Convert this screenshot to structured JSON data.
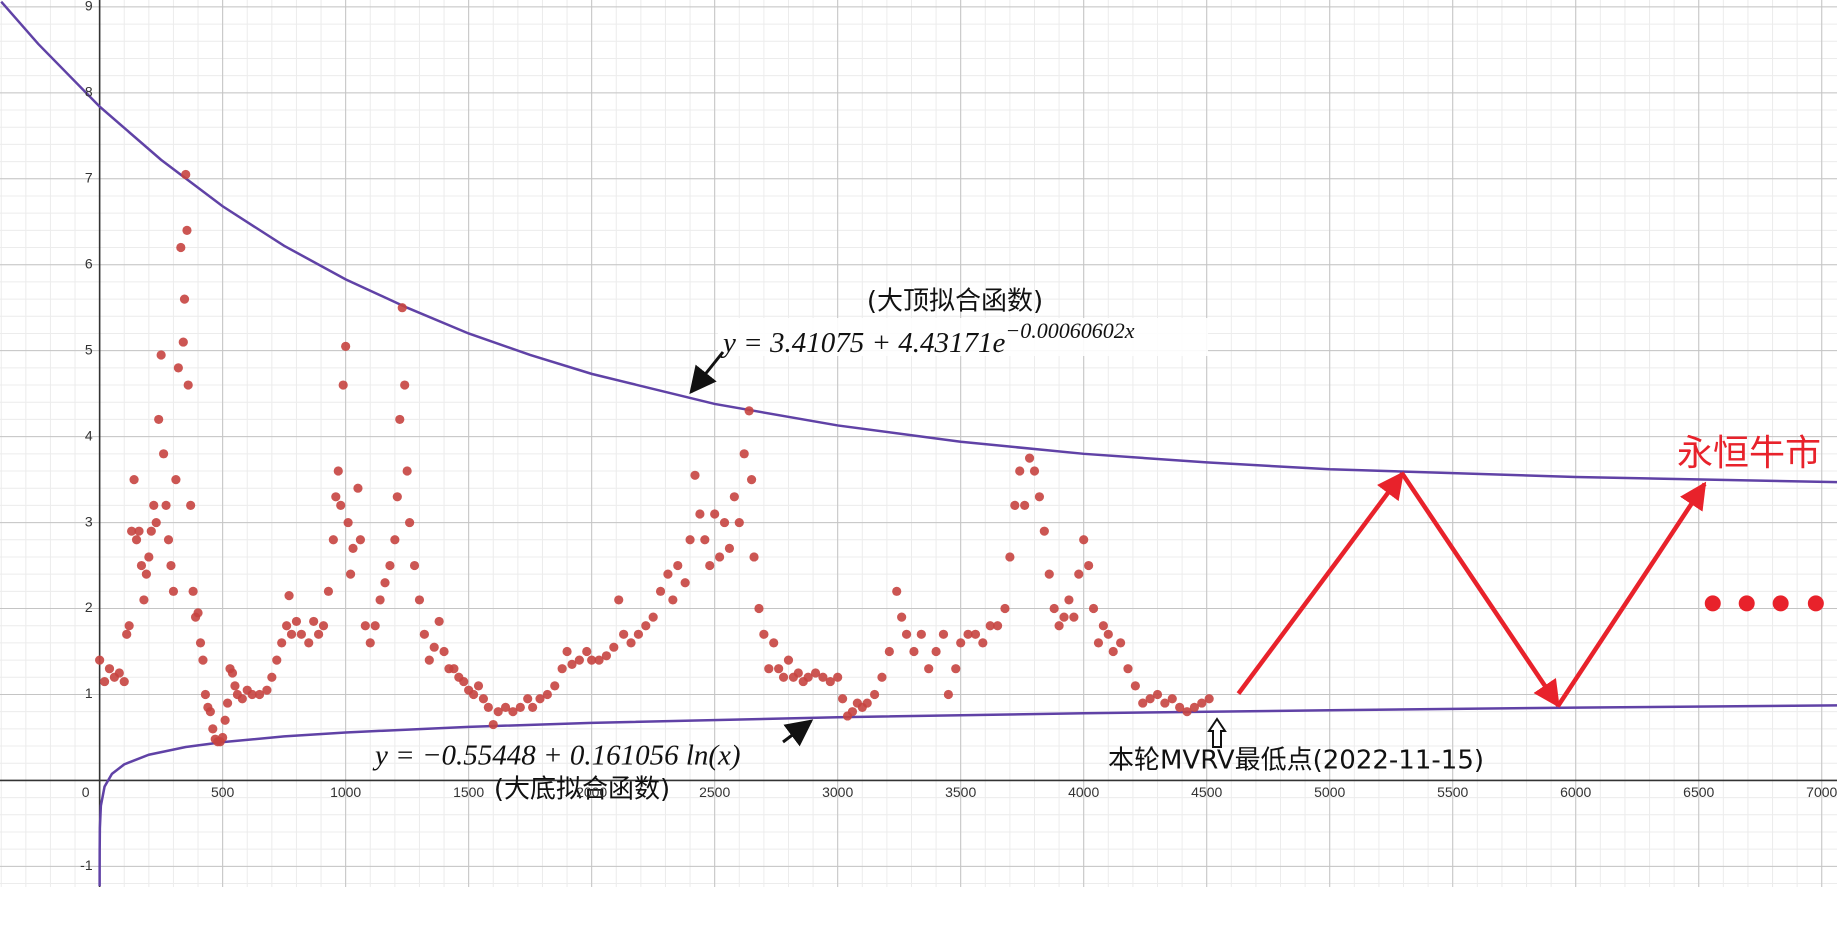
{
  "chart_data": {
    "type": "scatter",
    "xlim": [
      -405,
      7062
    ],
    "ylim": [
      -1.24,
      9.08
    ],
    "xticks": [
      0,
      500,
      1000,
      1500,
      2000,
      2500,
      3000,
      3500,
      4000,
      4500,
      5000,
      5500,
      6000,
      6500,
      7000
    ],
    "yticks": [
      -1,
      1,
      2,
      3,
      4,
      5,
      6,
      7,
      8,
      9
    ],
    "grid": true,
    "minor_grid": 5,
    "points": {
      "color": "#c74440",
      "x": [
        0,
        20,
        40,
        60,
        80,
        100,
        110,
        120,
        130,
        140,
        150,
        160,
        170,
        180,
        190,
        200,
        210,
        220,
        230,
        240,
        250,
        260,
        270,
        280,
        290,
        300,
        310,
        320,
        330,
        340,
        345,
        350,
        355,
        360,
        370,
        380,
        390,
        400,
        410,
        420,
        430,
        440,
        450,
        460,
        470,
        480,
        490,
        500,
        510,
        520,
        530,
        540,
        550,
        560,
        580,
        600,
        620,
        650,
        680,
        700,
        720,
        740,
        760,
        770,
        780,
        800,
        820,
        850,
        870,
        890,
        910,
        930,
        950,
        960,
        970,
        980,
        990,
        1000,
        1010,
        1020,
        1030,
        1050,
        1060,
        1080,
        1100,
        1120,
        1140,
        1160,
        1180,
        1200,
        1210,
        1220,
        1230,
        1240,
        1250,
        1260,
        1280,
        1300,
        1320,
        1340,
        1360,
        1380,
        1400,
        1420,
        1440,
        1460,
        1480,
        1500,
        1520,
        1540,
        1560,
        1580,
        1600,
        1620,
        1650,
        1680,
        1710,
        1740,
        1760,
        1790,
        1820,
        1850,
        1880,
        1900,
        1920,
        1950,
        1980,
        2000,
        2030,
        2060,
        2090,
        2110,
        2130,
        2160,
        2190,
        2220,
        2250,
        2280,
        2310,
        2330,
        2350,
        2380,
        2400,
        2420,
        2440,
        2460,
        2480,
        2500,
        2520,
        2540,
        2560,
        2580,
        2600,
        2620,
        2640,
        2650,
        2660,
        2680,
        2700,
        2720,
        2740,
        2760,
        2780,
        2800,
        2820,
        2840,
        2860,
        2880,
        2910,
        2940,
        2970,
        3000,
        3020,
        3040,
        3060,
        3080,
        3100,
        3120,
        3150,
        3180,
        3210,
        3240,
        3260,
        3280,
        3310,
        3340,
        3370,
        3400,
        3430,
        3450,
        3480,
        3500,
        3530,
        3560,
        3590,
        3620,
        3650,
        3680,
        3700,
        3720,
        3740,
        3760,
        3780,
        3800,
        3820,
        3840,
        3860,
        3880,
        3900,
        3920,
        3940,
        3960,
        3980,
        4000,
        4020,
        4040,
        4060,
        4080,
        4100,
        4120,
        4150,
        4180,
        4210,
        4240,
        4270,
        4300,
        4330,
        4360,
        4390,
        4420,
        4450,
        4480,
        4510
      ],
      "values": [
        1.4,
        1.15,
        1.3,
        1.2,
        1.25,
        1.15,
        1.7,
        1.8,
        2.9,
        3.5,
        2.8,
        2.9,
        2.5,
        2.1,
        2.4,
        2.6,
        2.9,
        3.2,
        3.0,
        4.2,
        4.95,
        3.8,
        3.2,
        2.8,
        2.5,
        2.2,
        3.5,
        4.8,
        6.2,
        5.1,
        5.6,
        7.05,
        6.4,
        4.6,
        3.2,
        2.2,
        1.9,
        1.95,
        1.6,
        1.4,
        1.0,
        0.85,
        0.8,
        0.6,
        0.48,
        0.45,
        0.45,
        0.5,
        0.7,
        0.9,
        1.3,
        1.25,
        1.1,
        1.0,
        0.95,
        1.05,
        1.0,
        1.0,
        1.05,
        1.2,
        1.4,
        1.6,
        1.8,
        2.15,
        1.7,
        1.85,
        1.7,
        1.6,
        1.85,
        1.7,
        1.8,
        2.2,
        2.8,
        3.3,
        3.6,
        3.2,
        4.6,
        5.05,
        3.0,
        2.4,
        2.7,
        3.4,
        2.8,
        1.8,
        1.6,
        1.8,
        2.1,
        2.3,
        2.5,
        2.8,
        3.3,
        4.2,
        5.5,
        4.6,
        3.6,
        3.0,
        2.5,
        2.1,
        1.7,
        1.4,
        1.55,
        1.85,
        1.5,
        1.3,
        1.3,
        1.2,
        1.15,
        1.05,
        1.0,
        1.1,
        0.95,
        0.85,
        0.65,
        0.8,
        0.85,
        0.8,
        0.85,
        0.95,
        0.85,
        0.95,
        1.0,
        1.1,
        1.3,
        1.5,
        1.35,
        1.4,
        1.5,
        1.4,
        1.4,
        1.45,
        1.55,
        2.1,
        1.7,
        1.6,
        1.7,
        1.8,
        1.9,
        2.2,
        2.4,
        2.1,
        2.5,
        2.3,
        2.8,
        3.55,
        3.1,
        2.8,
        2.5,
        3.1,
        2.6,
        3.0,
        2.7,
        3.3,
        3.0,
        3.8,
        4.3,
        3.5,
        2.6,
        2.0,
        1.7,
        1.3,
        1.6,
        1.3,
        1.2,
        1.4,
        1.2,
        1.25,
        1.15,
        1.2,
        1.25,
        1.2,
        1.15,
        1.2,
        0.95,
        0.75,
        0.8,
        0.9,
        0.85,
        0.9,
        1.0,
        1.2,
        1.5,
        2.2,
        1.9,
        1.7,
        1.5,
        1.7,
        1.3,
        1.5,
        1.7,
        1.0,
        1.3,
        1.6,
        1.7,
        1.7,
        1.6,
        1.8,
        1.8,
        2.0,
        2.6,
        3.2,
        3.6,
        3.2,
        3.75,
        3.6,
        3.3,
        2.9,
        2.4,
        2.0,
        1.8,
        1.9,
        2.1,
        1.9,
        2.4,
        2.8,
        2.5,
        2.0,
        1.6,
        1.8,
        1.7,
        1.5,
        1.6,
        1.3,
        1.1,
        0.9,
        0.95,
        1.0,
        0.9,
        0.95,
        0.85,
        0.8,
        0.85,
        0.9,
        0.95
      ]
    },
    "top_curve": {
      "color": "#6042a6",
      "x": [
        -400,
        -250,
        0,
        250,
        500,
        750,
        1000,
        1250,
        1500,
        1750,
        2000,
        2500,
        3000,
        3500,
        4000,
        4500,
        5000,
        6000,
        7062
      ],
      "values": [
        9.06,
        8.57,
        7.84,
        7.22,
        6.68,
        6.22,
        5.83,
        5.5,
        5.2,
        4.95,
        4.73,
        4.38,
        4.13,
        3.94,
        3.8,
        3.7,
        3.62,
        3.53,
        3.47
      ]
    },
    "bottom_curve": {
      "color": "#6042a6",
      "x": [
        0.015,
        0.03,
        0.2,
        1,
        5,
        20,
        50,
        100,
        200,
        350,
        500,
        750,
        1000,
        1500,
        2000,
        3000,
        4000,
        5000,
        6000,
        7062
      ],
      "values": [
        -1.23,
        -1.118,
        -0.814,
        -0.554,
        -0.295,
        -0.072,
        0.076,
        0.187,
        0.299,
        0.389,
        0.446,
        0.512,
        0.558,
        0.623,
        0.67,
        0.735,
        0.781,
        0.817,
        0.847,
        0.873
      ]
    },
    "projection": {
      "color": "#e8222b",
      "x": [
        4629,
        5295,
        5929,
        6524
      ],
      "values": [
        1.01,
        3.57,
        0.87,
        3.45
      ]
    },
    "dots": {
      "color": "#e8222b",
      "x": [
        6557,
        6695,
        6833,
        6976
      ],
      "values": [
        2.06,
        2.06,
        2.06,
        2.06
      ]
    },
    "top_fit_label": "(大顶拟合函数)",
    "top_fit_formula": {
      "base": "y = 3.41075 + 4.43171e",
      "exponent": "−0.00060602x"
    },
    "bottom_fit_formula": "y = −0.55448 + 0.161056 ln(x)",
    "bottom_fit_label": "(大底拟合函数)",
    "low_point_label": "本轮MVRV最低点(2022-11-15)",
    "bull_label": "永恒牛市"
  }
}
